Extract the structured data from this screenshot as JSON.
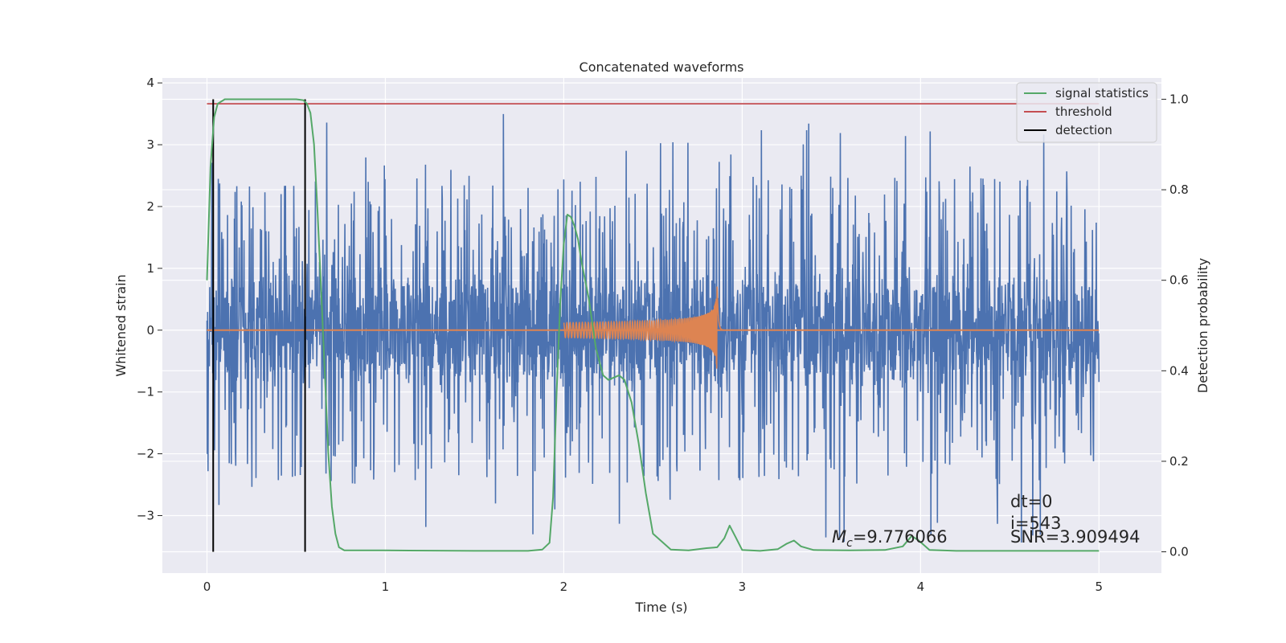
{
  "chart_data": {
    "type": "line",
    "title": "Concatenated waveforms",
    "xlabel": "Time (s)",
    "ylabel": "Whitened strain",
    "y2label": "Detection probability",
    "xlim": [
      -0.25,
      5.35
    ],
    "ylim": [
      -3.93,
      4.08
    ],
    "y2lim": [
      -0.047,
      1.047
    ],
    "x_ticks": [
      0,
      1,
      2,
      3,
      4,
      5
    ],
    "x_tick_labels": [
      "0",
      "1",
      "2",
      "3",
      "4",
      "5"
    ],
    "y_ticks": [
      -3,
      -2,
      -1,
      0,
      1,
      2,
      3,
      4
    ],
    "y_tick_labels": [
      "−3",
      "−2",
      "−1",
      "0",
      "1",
      "2",
      "3",
      "4"
    ],
    "y2_ticks": [
      0.0,
      0.2,
      0.4,
      0.6,
      0.8,
      1.0
    ],
    "y2_tick_labels": [
      "0.0",
      "0.2",
      "0.4",
      "0.6",
      "0.8",
      "1.0"
    ],
    "grid": true,
    "legend_position": "top-right",
    "colors": {
      "strain": "#4c72b0",
      "template": "#dd8452",
      "signal_statistics": "#55a868",
      "threshold": "#c44e52",
      "detection": "#000000",
      "background": "#eaeaf2",
      "grid": "#ffffff"
    },
    "series": [
      {
        "name": "signal statistics",
        "axis": "right",
        "x": [
          0.0,
          0.02,
          0.04,
          0.06,
          0.1,
          0.2,
          0.3,
          0.4,
          0.5,
          0.54,
          0.56,
          0.58,
          0.6,
          0.62,
          0.64,
          0.66,
          0.68,
          0.7,
          0.72,
          0.74,
          0.77,
          1.0,
          1.5,
          1.8,
          1.88,
          1.92,
          1.94,
          1.96,
          1.98,
          2.0,
          2.02,
          2.04,
          2.06,
          2.08,
          2.1,
          2.14,
          2.18,
          2.22,
          2.25,
          2.28,
          2.31,
          2.34,
          2.38,
          2.42,
          2.46,
          2.5,
          2.6,
          2.7,
          2.8,
          2.86,
          2.9,
          2.93,
          2.96,
          3.0,
          3.1,
          3.2,
          3.25,
          3.29,
          3.33,
          3.4,
          3.6,
          3.8,
          3.9,
          3.95,
          3.99,
          4.05,
          4.2,
          4.5,
          5.0
        ],
        "values": [
          0.6,
          0.85,
          0.96,
          0.99,
          1.0,
          1.0,
          1.0,
          1.0,
          1.0,
          0.998,
          0.99,
          0.97,
          0.9,
          0.75,
          0.58,
          0.4,
          0.22,
          0.1,
          0.04,
          0.01,
          0.003,
          0.003,
          0.002,
          0.002,
          0.005,
          0.02,
          0.12,
          0.35,
          0.55,
          0.68,
          0.745,
          0.74,
          0.72,
          0.69,
          0.64,
          0.56,
          0.45,
          0.39,
          0.38,
          0.385,
          0.39,
          0.38,
          0.33,
          0.24,
          0.13,
          0.04,
          0.005,
          0.003,
          0.008,
          0.01,
          0.03,
          0.058,
          0.035,
          0.004,
          0.002,
          0.006,
          0.018,
          0.025,
          0.012,
          0.004,
          0.003,
          0.004,
          0.012,
          0.035,
          0.025,
          0.004,
          0.002,
          0.002,
          0.002
        ]
      },
      {
        "name": "threshold",
        "axis": "right",
        "x": [
          0.0,
          5.0
        ],
        "values": [
          0.99,
          0.99
        ]
      },
      {
        "name": "detection",
        "axis": "right",
        "x": [
          0.035,
          0.55
        ],
        "values": [
          1.0,
          1.0
        ]
      },
      {
        "name": "",
        "axis": "left",
        "x_range": [
          0.0,
          5.0
        ],
        "envelope_upper": 0.8,
        "envelope_lower": -0.65,
        "spike_max": 3.7,
        "spike_min": -3.6
      },
      {
        "name": "",
        "axis": "left",
        "x_range": [
          2.0,
          2.86
        ],
        "peak_time": 2.86,
        "peak_amplitude": 0.75,
        "start_amplitude": 0.12
      }
    ],
    "annotations": {
      "mc_symbol": "M",
      "mc_subscript": "c",
      "mc_value": "=9.776066",
      "dt": "dt=0",
      "index": "i=543",
      "snr": "SNR=3.909494"
    }
  }
}
